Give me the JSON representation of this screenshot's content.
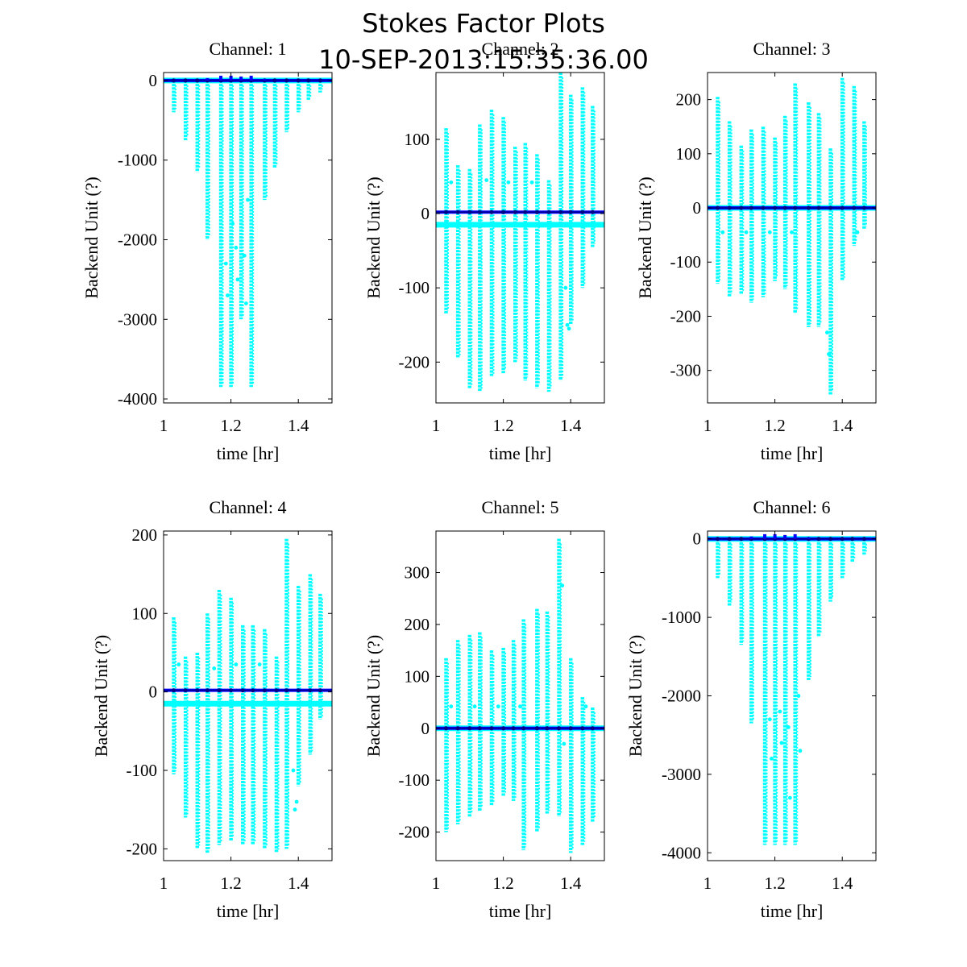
{
  "figure": {
    "title_line1": "Stokes Factor Plots",
    "title_line2": "10-SEP-2013:15:35:36.00"
  },
  "colors": {
    "raw_points": "#00ffff",
    "mean_line": "#0000ff",
    "mean_line_dark": "#00008b",
    "axes": "#000000"
  },
  "chart_data": [
    {
      "type": "scatter",
      "title": "Channel: 1",
      "xlabel": "time [hr]",
      "ylabel": "Backend Unit (?)",
      "xlim": [
        1.0,
        1.5
      ],
      "ylim": [
        -4050,
        100
      ],
      "xticks": [
        1,
        1.2,
        1.4
      ],
      "xtick_labels": [
        "1",
        "1.2",
        "1.4"
      ],
      "yticks": [
        -4000,
        -3000,
        -2000,
        -1000,
        0
      ],
      "ytick_labels": [
        "-4000",
        "-3000",
        "-2000",
        "-1000",
        "0"
      ],
      "series": [
        {
          "name": "cyan-points",
          "columns": [
            {
              "x": 1.03,
              "min": -400,
              "max": 0
            },
            {
              "x": 1.065,
              "min": -750,
              "max": 0
            },
            {
              "x": 1.1,
              "min": -1150,
              "max": 0
            },
            {
              "x": 1.13,
              "min": -2000,
              "max": 0
            },
            {
              "x": 1.17,
              "min": -3850,
              "max": 0
            },
            {
              "x": 1.2,
              "min": -3850,
              "max": 0
            },
            {
              "x": 1.23,
              "min": -3000,
              "max": 0
            },
            {
              "x": 1.26,
              "min": -3850,
              "max": 0
            },
            {
              "x": 1.3,
              "min": -1500,
              "max": 0
            },
            {
              "x": 1.33,
              "min": -1100,
              "max": 0
            },
            {
              "x": 1.365,
              "min": -650,
              "max": 0
            },
            {
              "x": 1.4,
              "min": -400,
              "max": 0
            },
            {
              "x": 1.43,
              "min": -250,
              "max": 0
            },
            {
              "x": 1.465,
              "min": -150,
              "max": 0
            }
          ],
          "scatter_points": [
            {
              "x": 1.185,
              "y": -2300
            },
            {
              "x": 1.19,
              "y": -2700
            },
            {
              "x": 1.215,
              "y": -2100
            },
            {
              "x": 1.22,
              "y": -2500
            },
            {
              "x": 1.24,
              "y": -2200
            },
            {
              "x": 1.245,
              "y": -2800
            },
            {
              "x": 1.205,
              "y": -1800
            },
            {
              "x": 1.25,
              "y": -1500
            }
          ],
          "band_y": 0
        },
        {
          "name": "blue-mean",
          "y": 0,
          "bumps": [
            {
              "x": 1.13,
              "y": 30
            },
            {
              "x": 1.17,
              "y": 60
            },
            {
              "x": 1.2,
              "y": 60
            },
            {
              "x": 1.23,
              "y": 50
            },
            {
              "x": 1.26,
              "y": 60
            },
            {
              "x": 1.3,
              "y": 20
            }
          ]
        }
      ]
    },
    {
      "type": "scatter",
      "title": "Channel: 2",
      "xlabel": "time [hr]",
      "ylabel": "Backend Unit (?)",
      "xlim": [
        1.0,
        1.5
      ],
      "ylim": [
        -255,
        190
      ],
      "xticks": [
        1,
        1.2,
        1.4
      ],
      "xtick_labels": [
        "1",
        "1.2",
        "1.4"
      ],
      "yticks": [
        -200,
        -100,
        0,
        100
      ],
      "ytick_labels": [
        "-200",
        "-100",
        "0",
        "100"
      ],
      "series": [
        {
          "name": "cyan-points",
          "columns": [
            {
              "x": 1.03,
              "min": -135,
              "max": 115
            },
            {
              "x": 1.065,
              "min": -195,
              "max": 65
            },
            {
              "x": 1.1,
              "min": -235,
              "max": 60
            },
            {
              "x": 1.13,
              "min": -240,
              "max": 120
            },
            {
              "x": 1.165,
              "min": -220,
              "max": 140
            },
            {
              "x": 1.2,
              "min": -215,
              "max": 130
            },
            {
              "x": 1.235,
              "min": -200,
              "max": 90
            },
            {
              "x": 1.265,
              "min": -225,
              "max": 95
            },
            {
              "x": 1.3,
              "min": -235,
              "max": 80
            },
            {
              "x": 1.335,
              "min": -240,
              "max": 45
            },
            {
              "x": 1.37,
              "min": -225,
              "max": 190
            },
            {
              "x": 1.4,
              "min": -150,
              "max": 160
            },
            {
              "x": 1.435,
              "min": -100,
              "max": 170
            },
            {
              "x": 1.465,
              "min": -45,
              "max": 145
            }
          ],
          "scatter_points": [
            {
              "x": 1.045,
              "y": 42
            },
            {
              "x": 1.15,
              "y": 45
            },
            {
              "x": 1.215,
              "y": 42
            },
            {
              "x": 1.285,
              "y": 42
            },
            {
              "x": 1.385,
              "y": -100
            },
            {
              "x": 1.39,
              "y": -150
            },
            {
              "x": 1.395,
              "y": -155
            }
          ],
          "band_y": -15
        },
        {
          "name": "blue-mean",
          "y": 2,
          "bumps": []
        }
      ]
    },
    {
      "type": "scatter",
      "title": "Channel: 3",
      "xlabel": "time [hr]",
      "ylabel": "Backend Unit (?)",
      "xlim": [
        1.0,
        1.5
      ],
      "ylim": [
        -360,
        250
      ],
      "xticks": [
        1,
        1.2,
        1.4
      ],
      "xtick_labels": [
        "1",
        "1.2",
        "1.4"
      ],
      "yticks": [
        -300,
        -200,
        -100,
        0,
        100,
        200
      ],
      "ytick_labels": [
        "-300",
        "-200",
        "-100",
        "0",
        "100",
        "200"
      ],
      "series": [
        {
          "name": "cyan-points",
          "columns": [
            {
              "x": 1.03,
              "min": -140,
              "max": 205
            },
            {
              "x": 1.065,
              "min": -165,
              "max": 160
            },
            {
              "x": 1.1,
              "min": -160,
              "max": 115
            },
            {
              "x": 1.13,
              "min": -175,
              "max": 145
            },
            {
              "x": 1.165,
              "min": -165,
              "max": 150
            },
            {
              "x": 1.2,
              "min": -135,
              "max": 130
            },
            {
              "x": 1.23,
              "min": -150,
              "max": 170
            },
            {
              "x": 1.26,
              "min": -195,
              "max": 230
            },
            {
              "x": 1.3,
              "min": -220,
              "max": 195
            },
            {
              "x": 1.33,
              "min": -220,
              "max": 175
            },
            {
              "x": 1.365,
              "min": -345,
              "max": 110
            },
            {
              "x": 1.4,
              "min": -135,
              "max": 240
            },
            {
              "x": 1.435,
              "min": -70,
              "max": 225
            },
            {
              "x": 1.465,
              "min": -40,
              "max": 160
            }
          ],
          "scatter_points": [
            {
              "x": 1.045,
              "y": -45
            },
            {
              "x": 1.115,
              "y": -45
            },
            {
              "x": 1.185,
              "y": -45
            },
            {
              "x": 1.25,
              "y": -45
            },
            {
              "x": 1.355,
              "y": -230
            },
            {
              "x": 1.36,
              "y": -270
            },
            {
              "x": 1.445,
              "y": -45
            }
          ],
          "band_y": 0
        },
        {
          "name": "blue-mean",
          "y": 0,
          "bumps": []
        }
      ]
    },
    {
      "type": "scatter",
      "title": "Channel: 4",
      "xlabel": "time [hr]",
      "ylabel": "Backend Unit (?)",
      "xlim": [
        1.0,
        1.5
      ],
      "ylim": [
        -215,
        205
      ],
      "xticks": [
        1,
        1.2,
        1.4
      ],
      "xtick_labels": [
        "1",
        "1.2",
        "1.4"
      ],
      "yticks": [
        -200,
        -100,
        0,
        100,
        200
      ],
      "ytick_labels": [
        "-200",
        "-100",
        "0",
        "100",
        "200"
      ],
      "series": [
        {
          "name": "cyan-points",
          "columns": [
            {
              "x": 1.03,
              "min": -105,
              "max": 95
            },
            {
              "x": 1.065,
              "min": -160,
              "max": 45
            },
            {
              "x": 1.1,
              "min": -200,
              "max": 50
            },
            {
              "x": 1.13,
              "min": -205,
              "max": 100
            },
            {
              "x": 1.165,
              "min": -195,
              "max": 130
            },
            {
              "x": 1.2,
              "min": -190,
              "max": 120
            },
            {
              "x": 1.235,
              "min": -195,
              "max": 85
            },
            {
              "x": 1.265,
              "min": -195,
              "max": 85
            },
            {
              "x": 1.3,
              "min": -200,
              "max": 80
            },
            {
              "x": 1.335,
              "min": -205,
              "max": 45
            },
            {
              "x": 1.365,
              "min": -200,
              "max": 195
            },
            {
              "x": 1.4,
              "min": -120,
              "max": 135
            },
            {
              "x": 1.435,
              "min": -80,
              "max": 150
            },
            {
              "x": 1.465,
              "min": -35,
              "max": 125
            }
          ],
          "scatter_points": [
            {
              "x": 1.045,
              "y": 35
            },
            {
              "x": 1.15,
              "y": 30
            },
            {
              "x": 1.215,
              "y": 35
            },
            {
              "x": 1.285,
              "y": 35
            },
            {
              "x": 1.385,
              "y": -100
            },
            {
              "x": 1.39,
              "y": -150
            },
            {
              "x": 1.395,
              "y": -140
            }
          ],
          "band_y": -15
        },
        {
          "name": "blue-mean",
          "y": 2,
          "bumps": []
        }
      ]
    },
    {
      "type": "scatter",
      "title": "Channel: 5",
      "xlabel": "time [hr]",
      "ylabel": "Backend Unit (?)",
      "xlim": [
        1.0,
        1.5
      ],
      "ylim": [
        -255,
        380
      ],
      "xticks": [
        1,
        1.2,
        1.4
      ],
      "xtick_labels": [
        "1",
        "1.2",
        "1.4"
      ],
      "yticks": [
        -200,
        -100,
        0,
        100,
        200,
        300
      ],
      "ytick_labels": [
        "-200",
        "-100",
        "0",
        "100",
        "200",
        "300"
      ],
      "series": [
        {
          "name": "cyan-points",
          "columns": [
            {
              "x": 1.03,
              "min": -200,
              "max": 135
            },
            {
              "x": 1.065,
              "min": -185,
              "max": 170
            },
            {
              "x": 1.1,
              "min": -170,
              "max": 180
            },
            {
              "x": 1.13,
              "min": -160,
              "max": 185
            },
            {
              "x": 1.165,
              "min": -150,
              "max": 150
            },
            {
              "x": 1.2,
              "min": -130,
              "max": 155
            },
            {
              "x": 1.23,
              "min": -140,
              "max": 170
            },
            {
              "x": 1.26,
              "min": -235,
              "max": 210
            },
            {
              "x": 1.3,
              "min": -200,
              "max": 230
            },
            {
              "x": 1.33,
              "min": -165,
              "max": 225
            },
            {
              "x": 1.365,
              "min": -170,
              "max": 365
            },
            {
              "x": 1.4,
              "min": -240,
              "max": 135
            },
            {
              "x": 1.435,
              "min": -225,
              "max": 60
            },
            {
              "x": 1.465,
              "min": -180,
              "max": 40
            }
          ],
          "scatter_points": [
            {
              "x": 1.045,
              "y": 42
            },
            {
              "x": 1.115,
              "y": 42
            },
            {
              "x": 1.185,
              "y": 42
            },
            {
              "x": 1.25,
              "y": 42
            },
            {
              "x": 1.375,
              "y": 275
            },
            {
              "x": 1.445,
              "y": 42
            },
            {
              "x": 1.38,
              "y": -30
            }
          ],
          "band_y": 0
        },
        {
          "name": "blue-mean",
          "y": 0,
          "bumps": []
        }
      ]
    },
    {
      "type": "scatter",
      "title": "Channel: 6",
      "xlabel": "time [hr]",
      "ylabel": "Backend Unit (?)",
      "xlim": [
        1.0,
        1.5
      ],
      "ylim": [
        -4100,
        100
      ],
      "xticks": [
        1,
        1.2,
        1.4
      ],
      "xtick_labels": [
        "1",
        "1.2",
        "1.4"
      ],
      "yticks": [
        -4000,
        -3000,
        -2000,
        -1000,
        0
      ],
      "ytick_labels": [
        "-4000",
        "-3000",
        "-2000",
        "-1000",
        "0"
      ],
      "series": [
        {
          "name": "cyan-points",
          "columns": [
            {
              "x": 1.03,
              "min": -500,
              "max": 0
            },
            {
              "x": 1.065,
              "min": -850,
              "max": 0
            },
            {
              "x": 1.1,
              "min": -1350,
              "max": 0
            },
            {
              "x": 1.13,
              "min": -2350,
              "max": 0
            },
            {
              "x": 1.17,
              "min": -3900,
              "max": 0
            },
            {
              "x": 1.2,
              "min": -3900,
              "max": 0
            },
            {
              "x": 1.23,
              "min": -3900,
              "max": 0
            },
            {
              "x": 1.26,
              "min": -3900,
              "max": 0
            },
            {
              "x": 1.3,
              "min": -1800,
              "max": 0
            },
            {
              "x": 1.33,
              "min": -1250,
              "max": 0
            },
            {
              "x": 1.365,
              "min": -800,
              "max": 0
            },
            {
              "x": 1.4,
              "min": -500,
              "max": 0
            },
            {
              "x": 1.43,
              "min": -300,
              "max": 0
            },
            {
              "x": 1.465,
              "min": -200,
              "max": 0
            }
          ],
          "scatter_points": [
            {
              "x": 1.185,
              "y": -2300
            },
            {
              "x": 1.19,
              "y": -2800
            },
            {
              "x": 1.215,
              "y": -2200
            },
            {
              "x": 1.22,
              "y": -2600
            },
            {
              "x": 1.24,
              "y": -2400
            },
            {
              "x": 1.245,
              "y": -3300
            },
            {
              "x": 1.27,
              "y": -2000
            },
            {
              "x": 1.275,
              "y": -2700
            }
          ],
          "band_y": 0
        },
        {
          "name": "blue-mean",
          "y": 0,
          "bumps": [
            {
              "x": 1.13,
              "y": 30
            },
            {
              "x": 1.17,
              "y": 60
            },
            {
              "x": 1.2,
              "y": 60
            },
            {
              "x": 1.23,
              "y": 50
            },
            {
              "x": 1.26,
              "y": 60
            },
            {
              "x": 1.3,
              "y": 20
            }
          ]
        }
      ]
    }
  ]
}
